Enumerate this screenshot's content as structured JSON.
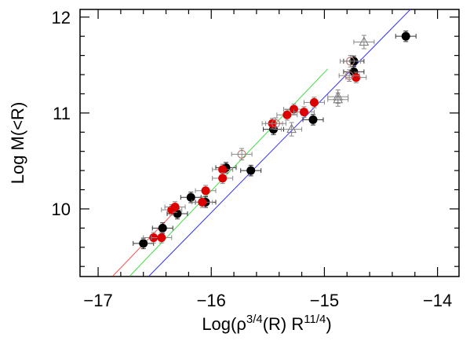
{
  "chart_data": {
    "type": "scatter",
    "x_label": [
      "Log(ρ",
      "3/4",
      "(R) R",
      "11/4",
      ")"
    ],
    "y_label": "Log M(<R)",
    "xlim": [
      -17.16,
      -13.81
    ],
    "ylim": [
      9.295,
      12.08
    ],
    "xticks": [
      {
        "value": -17,
        "label": "−17"
      },
      {
        "value": -16,
        "label": "−16"
      },
      {
        "value": -15,
        "label": "−15"
      },
      {
        "value": -14,
        "label": "−14"
      }
    ],
    "yticks": [
      10,
      11,
      12
    ],
    "xminor": [
      -16.8,
      -16.6,
      -16.4,
      -16.2,
      -15.8,
      -15.6,
      -15.4,
      -15.2,
      -14.8,
      -14.6,
      -14.4,
      -14.2
    ],
    "yminor": [
      9.4,
      9.6,
      9.8,
      10.2,
      10.4,
      10.6,
      10.8,
      11.2,
      11.4,
      11.6,
      11.8
    ],
    "series": [
      {
        "marker": "filled-circle",
        "color": "#000000",
        "xerr": 0.09,
        "yerr": 0.055,
        "x": [
          -16.6,
          -16.43,
          -16.3,
          -16.18,
          -16.05,
          -15.87,
          -15.65,
          -15.45,
          -15.1,
          -14.74,
          -14.74,
          -14.28
        ],
        "y": [
          9.64,
          9.8,
          9.95,
          10.12,
          10.07,
          10.43,
          10.4,
          10.83,
          10.93,
          11.54,
          11.43,
          11.8
        ]
      },
      {
        "marker": "filled-circle",
        "color": "#dd0000",
        "xerr": 0.09,
        "yerr": 0.055,
        "x": [
          -16.51,
          -16.44,
          -16.35,
          -16.32,
          -16.05,
          -15.9,
          -15.9,
          -16.08,
          -15.46,
          -15.33,
          -15.27,
          -15.18,
          -15.09,
          -14.72
        ],
        "y": [
          9.7,
          9.7,
          9.99,
          10.02,
          10.19,
          10.41,
          10.32,
          10.07,
          10.89,
          10.98,
          11.04,
          11.01,
          11.11,
          11.37
        ]
      },
      {
        "marker": "open-triangle",
        "color": "#777777",
        "xerr": 0.09,
        "yerr": 0.07,
        "x": [
          -15.29,
          -14.88,
          -14.88,
          -14.65
        ],
        "y": [
          10.83,
          11.17,
          11.14,
          11.74
        ]
      },
      {
        "marker": "open-circle",
        "color": "#b07070",
        "xerr": 0.09,
        "yerr": 0.06,
        "x": [
          -15.73,
          -15.43,
          -14.77,
          -14.78
        ],
        "y": [
          10.57,
          10.89,
          11.54,
          11.39
        ]
      }
    ],
    "lines": [
      {
        "color": "#ff5050",
        "x": [
          -16.87,
          -16.3
        ],
        "y": [
          9.3,
          10.0
        ]
      },
      {
        "color": "#44dd44",
        "x": [
          -16.72,
          -14.97
        ],
        "y": [
          9.3,
          11.46
        ]
      },
      {
        "color": "#3333ff",
        "x": [
          -16.55,
          -14.24
        ],
        "y": [
          9.3,
          12.08
        ]
      }
    ]
  }
}
